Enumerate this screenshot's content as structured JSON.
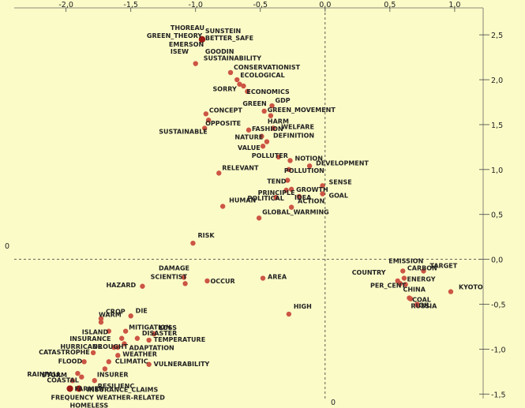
{
  "chart_data": {
    "type": "scatter",
    "xlim": [
      -2.4,
      1.22
    ],
    "ylim": [
      -1.55,
      2.8
    ],
    "x_ticks": [
      {
        "value": -2.0,
        "label": "-2,0"
      },
      {
        "value": -1.5,
        "label": "-1,5"
      },
      {
        "value": -1.0,
        "label": "-1,0"
      },
      {
        "value": -0.5,
        "label": "-0,5"
      },
      {
        "value": 0.0,
        "label": "0,0"
      },
      {
        "value": 0.5,
        "label": "0,5"
      },
      {
        "value": 1.0,
        "label": "1,0"
      }
    ],
    "y_ticks": [
      {
        "value": 2.5,
        "label": "2,5"
      },
      {
        "value": 2.0,
        "label": "2,0"
      },
      {
        "value": 1.5,
        "label": "1,5"
      },
      {
        "value": 1.0,
        "label": "1,0"
      },
      {
        "value": 0.5,
        "label": "0,5"
      },
      {
        "value": 0.0,
        "label": "0,0"
      },
      {
        "value": -0.5,
        "label": "-0,5"
      },
      {
        "value": -1.0,
        "label": "-1,0"
      },
      {
        "value": -1.5,
        "label": "-1,5"
      }
    ],
    "left_zero_label": "0",
    "bottom_zero_label": "0",
    "colors": {
      "point": "#cc5544",
      "point_dark": "#9e1b14",
      "background": "#fbfbc8"
    },
    "points": [
      {
        "label": "THOREAU",
        "x": -0.95,
        "y": 2.45,
        "dark": true
      },
      {
        "label": "SUNSTEIN",
        "x": -0.95,
        "y": 2.45,
        "dark": true
      },
      {
        "label": "GREEN_THEORY",
        "x": -0.95,
        "y": 2.45,
        "dark": true
      },
      {
        "label": "BETTER_SAFE",
        "x": -0.95,
        "y": 2.45,
        "dark": true
      },
      {
        "label": "EMERSON",
        "x": -0.95,
        "y": 2.45,
        "dark": true
      },
      {
        "label": "ISEW",
        "x": -0.95,
        "y": 2.45,
        "dark": true
      },
      {
        "label": "GOODIN",
        "x": -0.95,
        "y": 2.45,
        "dark": true
      },
      {
        "label": "SUSTAINABILITY",
        "x": -1.0,
        "y": 2.18
      },
      {
        "label": "CONSERVATIONIST",
        "x": -0.73,
        "y": 2.08
      },
      {
        "label": "ECOLOGICAL",
        "x": -0.68,
        "y": 2.0
      },
      {
        "label": "SORRY",
        "x": -0.66,
        "y": 1.95
      },
      {
        "label": "ECONOMICS",
        "x": -0.63,
        "y": 1.93
      },
      {
        "label": "GREEN",
        "x": -0.6,
        "y": 1.87
      },
      {
        "label": "GDP",
        "x": -0.41,
        "y": 1.71
      },
      {
        "label": "GREEN_MOVEMENT",
        "x": -0.47,
        "y": 1.65
      },
      {
        "label": "CONCEPT",
        "x": -0.92,
        "y": 1.62
      },
      {
        "label": "HARM",
        "x": -0.42,
        "y": 1.6
      },
      {
        "label": "OPPOSITE",
        "x": -0.9,
        "y": 1.55
      },
      {
        "label": "SUSTAINABLE",
        "x": -0.93,
        "y": 1.46
      },
      {
        "label": "FASHION",
        "x": -0.59,
        "y": 1.44
      },
      {
        "label": "WELFARE",
        "x": -0.4,
        "y": 1.46
      },
      {
        "label": "NATURE",
        "x": -0.49,
        "y": 1.37
      },
      {
        "label": "DEFINITION",
        "x": -0.45,
        "y": 1.31
      },
      {
        "label": "VALUE",
        "x": -0.48,
        "y": 1.26
      },
      {
        "label": "POLLUTER",
        "x": -0.36,
        "y": 1.14
      },
      {
        "label": "NOTION",
        "x": -0.27,
        "y": 1.1
      },
      {
        "label": "DEVELOPMENT",
        "x": -0.12,
        "y": 1.04
      },
      {
        "label": "RELEVANT",
        "x": -0.82,
        "y": 0.96
      },
      {
        "label": "POLLUTION",
        "x": -0.28,
        "y": 1.0
      },
      {
        "label": "TEND",
        "x": -0.29,
        "y": 0.88
      },
      {
        "label": "SENSE",
        "x": -0.02,
        "y": 0.82
      },
      {
        "label": "GROWTH",
        "x": -0.26,
        "y": 0.78
      },
      {
        "label": "PRINCIPLE",
        "x": -0.3,
        "y": 0.77
      },
      {
        "label": "GOAL",
        "x": -0.02,
        "y": 0.73
      },
      {
        "label": "POLITICAL",
        "x": -0.38,
        "y": 0.69
      },
      {
        "label": "IDEA",
        "x": -0.2,
        "y": 0.7
      },
      {
        "label": "HUMAN",
        "x": -0.79,
        "y": 0.59
      },
      {
        "label": "ACTION",
        "x": -0.26,
        "y": 0.58
      },
      {
        "label": "GLOBAL_WARMING",
        "x": -0.51,
        "y": 0.46
      },
      {
        "label": "RISK",
        "x": -1.02,
        "y": 0.18
      },
      {
        "label": "EMISSION",
        "x": 0.6,
        "y": -0.13
      },
      {
        "label": "TARGET",
        "x": 0.76,
        "y": -0.13
      },
      {
        "label": "CARBON",
        "x": 0.61,
        "y": -0.21
      },
      {
        "label": "AREA",
        "x": -0.48,
        "y": -0.21
      },
      {
        "label": "DAMAGE",
        "x": -1.09,
        "y": -0.2
      },
      {
        "label": "OCCUR",
        "x": -0.91,
        "y": -0.24
      },
      {
        "label": "COUNTRY",
        "x": 0.56,
        "y": -0.24
      },
      {
        "label": "HAZARD",
        "x": -1.41,
        "y": -0.3
      },
      {
        "label": "SCIENTIST",
        "x": -1.08,
        "y": -0.27
      },
      {
        "label": "PER_CENT",
        "x": 0.58,
        "y": -0.27
      },
      {
        "label": "ENERGY",
        "x": 0.62,
        "y": -0.28
      },
      {
        "label": "KYOTO",
        "x": 0.97,
        "y": -0.36
      },
      {
        "label": "CHINA",
        "x": 0.65,
        "y": -0.43
      },
      {
        "label": "COAL",
        "x": 0.66,
        "y": -0.44
      },
      {
        "label": "RUSSIA",
        "x": 0.71,
        "y": -0.51
      },
      {
        "label": "OIL",
        "x": 0.71,
        "y": -0.5
      },
      {
        "label": "HIGH",
        "x": -0.28,
        "y": -0.61
      },
      {
        "label": "CROP",
        "x": -1.73,
        "y": -0.66
      },
      {
        "label": "DIE",
        "x": -1.5,
        "y": -0.63
      },
      {
        "label": "WARM",
        "x": -1.73,
        "y": -0.7
      },
      {
        "label": "ISLAND",
        "x": -1.67,
        "y": -0.8
      },
      {
        "label": "MITIGATION",
        "x": -1.54,
        "y": -0.8
      },
      {
        "label": "LOSS",
        "x": -1.32,
        "y": -0.83
      },
      {
        "label": "INSURANCE",
        "x": -1.57,
        "y": -0.88
      },
      {
        "label": "DISASTER",
        "x": -1.45,
        "y": -0.88
      },
      {
        "label": "TEMPERATURE",
        "x": -1.36,
        "y": -0.9
      },
      {
        "label": "HURRICANE",
        "x": -1.63,
        "y": -0.98
      },
      {
        "label": "DROUGHT",
        "x": -1.6,
        "y": -0.98
      },
      {
        "label": "ADAPTATION",
        "x": -1.55,
        "y": -0.94
      },
      {
        "label": "CATASTROPHE",
        "x": -1.79,
        "y": -1.04
      },
      {
        "label": "WEATHER",
        "x": -1.6,
        "y": -1.07
      },
      {
        "label": "VULNERABILITY",
        "x": -1.36,
        "y": -1.17
      },
      {
        "label": "FLOOD",
        "x": -1.86,
        "y": -1.14
      },
      {
        "label": "CLIMATIC",
        "x": -1.67,
        "y": -1.14
      },
      {
        "label": "INSURER",
        "x": -1.7,
        "y": -1.22
      },
      {
        "label": "RAINFALL",
        "x": -1.91,
        "y": -1.27
      },
      {
        "label": "COASTAL",
        "x": -1.88,
        "y": -1.31
      },
      {
        "label": "STORM",
        "x": -1.95,
        "y": -1.35
      },
      {
        "label": "RESILIENC",
        "x": -1.78,
        "y": -1.35
      },
      {
        "label": "FARMER",
        "x": -1.97,
        "y": -1.44,
        "dark": true
      },
      {
        "label": "INSURANCE_CLAIMS",
        "x": -1.9,
        "y": -1.44,
        "dark": true
      },
      {
        "label": "FREQUENCY",
        "x": -1.97,
        "y": -1.44,
        "dark": true
      },
      {
        "label": "WEATHER-RELATED",
        "x": -1.9,
        "y": -1.44,
        "dark": true
      },
      {
        "label": "HOMELESS",
        "x": -1.97,
        "y": -1.44,
        "dark": true
      }
    ]
  }
}
